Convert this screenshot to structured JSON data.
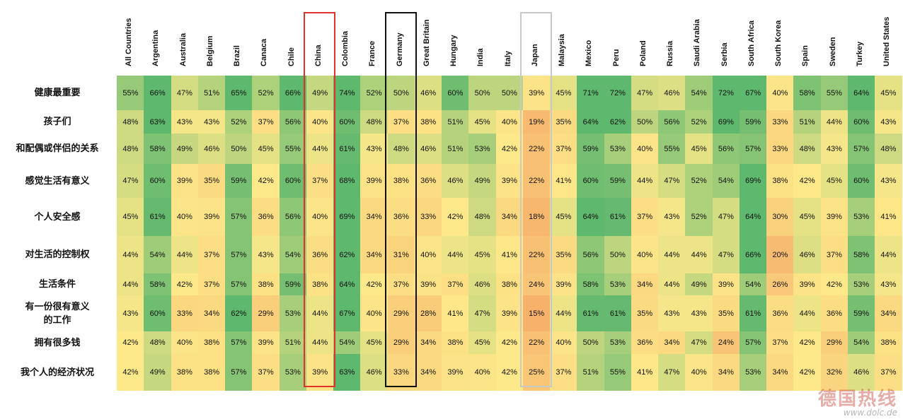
{
  "chart_data": {
    "type": "heatmap",
    "countries": [
      "All Countries",
      "Argentina",
      "Australia",
      "Belgium",
      "Brazil",
      "Canaca",
      "Chile",
      "China",
      "Colombia",
      "France",
      "Germany",
      "Great Britain",
      "Hungary",
      "India",
      "Italy",
      "Japan",
      "Malaysia",
      "Mexico",
      "Peru",
      "Poland",
      "Russia",
      "Saudi Arabia",
      "Serbia",
      "South Africa",
      "South Korea",
      "Spain",
      "Sweden",
      "Turkey",
      "United States"
    ],
    "rows": [
      {
        "label": "健康最重要",
        "values": [
          55,
          66,
          47,
          51,
          65,
          52,
          66,
          49,
          74,
          52,
          50,
          46,
          60,
          50,
          50,
          39,
          45,
          71,
          72,
          47,
          46,
          54,
          72,
          67,
          40,
          58,
          55,
          64,
          45
        ]
      },
      {
        "label": "孩子们",
        "values": [
          48,
          63,
          43,
          43,
          52,
          37,
          56,
          40,
          60,
          48,
          37,
          38,
          51,
          45,
          40,
          19,
          35,
          64,
          62,
          50,
          56,
          52,
          69,
          59,
          33,
          51,
          44,
          60,
          43
        ]
      },
      {
        "label": "和配偶或伴侣的关系",
        "values": [
          48,
          58,
          49,
          46,
          50,
          45,
          55,
          44,
          61,
          43,
          48,
          46,
          51,
          53,
          42,
          22,
          37,
          59,
          53,
          40,
          55,
          45,
          56,
          57,
          33,
          48,
          43,
          57,
          48
        ]
      },
      {
        "label": "感觉生活有意义",
        "values": [
          47,
          60,
          39,
          35,
          59,
          42,
          60,
          37,
          68,
          39,
          38,
          36,
          46,
          49,
          39,
          22,
          41,
          60,
          59,
          44,
          47,
          52,
          54,
          69,
          38,
          42,
          45,
          60,
          43
        ]
      },
      {
        "label": "个人安全感",
        "values": [
          45,
          61,
          40,
          39,
          57,
          36,
          56,
          40,
          69,
          34,
          36,
          33,
          42,
          48,
          34,
          18,
          45,
          64,
          61,
          37,
          43,
          52,
          47,
          64,
          30,
          45,
          39,
          53,
          41
        ]
      },
      {
        "label": "对生活的控制权",
        "values": [
          44,
          54,
          44,
          37,
          57,
          43,
          54,
          36,
          62,
          34,
          31,
          40,
          44,
          45,
          41,
          22,
          35,
          56,
          50,
          40,
          44,
          44,
          47,
          66,
          20,
          46,
          37,
          58,
          44
        ]
      },
      {
        "label": "生活条件",
        "values": [
          44,
          58,
          42,
          37,
          57,
          38,
          59,
          38,
          64,
          42,
          37,
          39,
          37,
          46,
          38,
          24,
          39,
          58,
          53,
          34,
          44,
          49,
          39,
          54,
          26,
          39,
          42,
          53,
          43
        ]
      },
      {
        "label": "有一份很有意义\n的工作",
        "values": [
          43,
          60,
          33,
          34,
          62,
          29,
          53,
          44,
          67,
          40,
          29,
          28,
          41,
          47,
          39,
          15,
          44,
          61,
          61,
          35,
          43,
          43,
          35,
          61,
          36,
          44,
          36,
          59,
          34
        ]
      },
      {
        "label": "拥有很多钱",
        "values": [
          42,
          48,
          40,
          38,
          57,
          39,
          51,
          44,
          54,
          45,
          29,
          34,
          38,
          45,
          42,
          22,
          40,
          50,
          53,
          36,
          34,
          47,
          24,
          57,
          37,
          42,
          29,
          54,
          38
        ]
      },
      {
        "label": "我个人的经济状况",
        "values": [
          42,
          49,
          38,
          38,
          57,
          37,
          53,
          39,
          63,
          46,
          33,
          34,
          39,
          40,
          42,
          25,
          37,
          51,
          55,
          41,
          47,
          40,
          34,
          53,
          34,
          42,
          32,
          46,
          37
        ]
      }
    ],
    "value_suffix": "%",
    "highlights": [
      {
        "country": "China",
        "color": "#e0312b"
      },
      {
        "country": "Germany",
        "color": "#111111"
      },
      {
        "country": "Japan",
        "color": "#c8c8c8"
      }
    ],
    "colors": {
      "low": "#f6b26b",
      "mid": "#fde98a",
      "high": "#5eb86e"
    }
  },
  "watermark": {
    "main": "德国热线",
    "url": "www.dolc.de"
  }
}
